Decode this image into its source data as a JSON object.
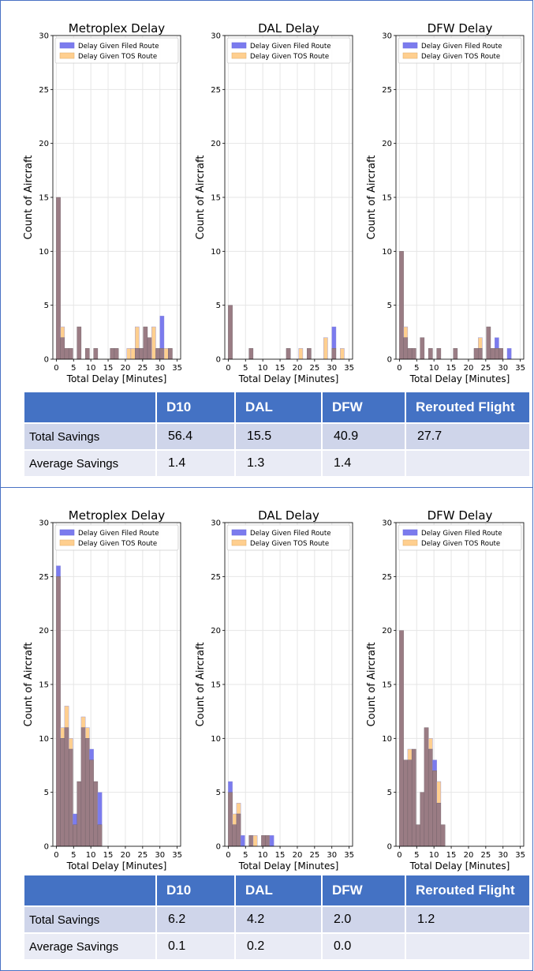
{
  "colors": {
    "filed": "#7b7bee",
    "tos": "#ffcf8f",
    "overlap": "#9a7c84",
    "header": "#4472c4"
  },
  "legend": {
    "filed": "Delay Given Filed Route",
    "tos": "Delay Given TOS Route"
  },
  "table_headers": [
    "",
    "D10",
    "DAL",
    "DFW",
    "Rerouted Flight"
  ],
  "chart_data": [
    {
      "type": "bar",
      "title": "Metroplex Delay",
      "xlabel": "Total Delay [Minutes]",
      "ylabel": "Count of Aircraft",
      "xlim": [
        -1,
        36
      ],
      "ylim": [
        0,
        30
      ],
      "xticks": [
        0,
        5,
        10,
        15,
        20,
        25,
        30,
        35
      ],
      "yticks": [
        0,
        5,
        10,
        15,
        20,
        25,
        30
      ],
      "bin_width": 1.2,
      "bins": [
        0,
        1.2,
        2.4,
        3.6,
        6.0,
        8.4,
        10.8,
        15.6,
        16.8,
        20.4,
        21.6,
        22.8,
        24.0,
        25.2,
        26.4,
        27.6,
        28.8,
        30.0,
        31.2,
        32.4
      ],
      "series": [
        {
          "name": "Delay Given Filed Route",
          "values": [
            15,
            2,
            1,
            1,
            3,
            1,
            1,
            1,
            1,
            0,
            0,
            1,
            1,
            3,
            2,
            0,
            1,
            4,
            0,
            1
          ]
        },
        {
          "name": "Delay Given TOS Route",
          "values": [
            15,
            3,
            1,
            1,
            3,
            1,
            1,
            1,
            1,
            1,
            1,
            3,
            1,
            3,
            2,
            3,
            1,
            1,
            1,
            1
          ]
        }
      ]
    },
    {
      "type": "bar",
      "title": "DAL Delay",
      "xlabel": "Total Delay [Minutes]",
      "ylabel": "Count of Aircraft",
      "xlim": [
        -1,
        36
      ],
      "ylim": [
        0,
        30
      ],
      "xticks": [
        0,
        5,
        10,
        15,
        20,
        25,
        30,
        35
      ],
      "yticks": [
        0,
        5,
        10,
        15,
        20,
        25,
        30
      ],
      "bin_width": 1.2,
      "bins": [
        0,
        6.0,
        16.8,
        20.4,
        22.8,
        27.6,
        30.0,
        32.4
      ],
      "series": [
        {
          "name": "Delay Given Filed Route",
          "values": [
            5,
            1,
            1,
            0,
            1,
            0,
            3,
            0
          ]
        },
        {
          "name": "Delay Given TOS Route",
          "values": [
            5,
            1,
            1,
            1,
            1,
            2,
            1,
            1
          ]
        }
      ]
    },
    {
      "type": "bar",
      "title": "DFW Delay",
      "xlabel": "Total Delay [Minutes]",
      "ylabel": "Count of Aircraft",
      "xlim": [
        -1,
        36
      ],
      "ylim": [
        0,
        30
      ],
      "xticks": [
        0,
        5,
        10,
        15,
        20,
        25,
        30,
        35
      ],
      "yticks": [
        0,
        5,
        10,
        15,
        20,
        25,
        30
      ],
      "bin_width": 1.2,
      "bins": [
        0,
        1.2,
        2.4,
        3.6,
        6.0,
        8.4,
        10.8,
        15.6,
        21.6,
        22.8,
        25.2,
        26.4,
        27.6,
        28.8,
        31.2
      ],
      "series": [
        {
          "name": "Delay Given Filed Route",
          "values": [
            10,
            2,
            1,
            1,
            2,
            1,
            1,
            1,
            1,
            1,
            3,
            1,
            2,
            1,
            1
          ]
        },
        {
          "name": "Delay Given TOS Route",
          "values": [
            10,
            3,
            1,
            1,
            2,
            1,
            1,
            1,
            1,
            2,
            3,
            1,
            1,
            1,
            0
          ]
        }
      ]
    },
    {
      "type": "bar",
      "title": "Metroplex Delay",
      "xlabel": "Total Delay [Minutes]",
      "ylabel": "Count of Aircraft",
      "xlim": [
        -1,
        36
      ],
      "ylim": [
        0,
        30
      ],
      "xticks": [
        0,
        5,
        10,
        15,
        20,
        25,
        30,
        35
      ],
      "yticks": [
        0,
        5,
        10,
        15,
        20,
        25,
        30
      ],
      "bin_width": 1.2,
      "bins": [
        0,
        1.2,
        2.4,
        3.6,
        4.8,
        6.0,
        7.2,
        8.4,
        9.6,
        10.8,
        12.0
      ],
      "series": [
        {
          "name": "Delay Given Filed Route",
          "values": [
            26,
            10,
            11,
            9,
            3,
            6,
            11,
            10,
            9,
            6,
            5
          ]
        },
        {
          "name": "Delay Given TOS Route",
          "values": [
            25,
            11,
            13,
            10,
            2,
            6,
            12,
            11,
            8,
            6,
            2
          ]
        }
      ]
    },
    {
      "type": "bar",
      "title": "DAL Delay",
      "xlabel": "Total Delay [Minutes]",
      "ylabel": "Count of Aircraft",
      "xlim": [
        -1,
        36
      ],
      "ylim": [
        0,
        30
      ],
      "xticks": [
        0,
        5,
        10,
        15,
        20,
        25,
        30,
        35
      ],
      "yticks": [
        0,
        5,
        10,
        15,
        20,
        25,
        30
      ],
      "bin_width": 1.2,
      "bins": [
        0,
        1.2,
        2.4,
        3.6,
        6.0,
        7.2,
        9.6,
        10.8,
        12.0
      ],
      "series": [
        {
          "name": "Delay Given Filed Route",
          "values": [
            6,
            2,
            3,
            1,
            1,
            0,
            1,
            1,
            1
          ]
        },
        {
          "name": "Delay Given TOS Route",
          "values": [
            5,
            3,
            4,
            0,
            1,
            1,
            1,
            1,
            0
          ]
        }
      ]
    },
    {
      "type": "bar",
      "title": "DFW Delay",
      "xlabel": "Total Delay [Minutes]",
      "ylabel": "Count of Aircraft",
      "xlim": [
        -1,
        36
      ],
      "ylim": [
        0,
        30
      ],
      "xticks": [
        0,
        5,
        10,
        15,
        20,
        25,
        30,
        35
      ],
      "yticks": [
        0,
        5,
        10,
        15,
        20,
        25,
        30
      ],
      "bin_width": 1.2,
      "bins": [
        0,
        1.2,
        2.4,
        3.6,
        4.8,
        6.0,
        7.2,
        8.4,
        9.6,
        10.8,
        12.0
      ],
      "series": [
        {
          "name": "Delay Given Filed Route",
          "values": [
            20,
            8,
            8,
            9,
            2,
            5,
            11,
            9,
            8,
            4,
            2
          ]
        },
        {
          "name": "Delay Given TOS Route",
          "values": [
            20,
            8,
            9,
            9,
            2,
            5,
            11,
            10,
            7,
            6,
            2
          ]
        }
      ]
    }
  ],
  "tables": [
    {
      "rows": [
        {
          "label": "Total Savings",
          "values": [
            "56.4",
            "15.5",
            "40.9",
            "27.7"
          ]
        },
        {
          "label": "Average Savings",
          "values": [
            "1.4",
            "1.3",
            "1.4",
            ""
          ]
        }
      ]
    },
    {
      "rows": [
        {
          "label": "Total Savings",
          "values": [
            "6.2",
            "4.2",
            "2.0",
            "1.2"
          ]
        },
        {
          "label": "Average Savings",
          "values": [
            "0.1",
            "0.2",
            "0.0",
            ""
          ]
        }
      ]
    }
  ]
}
